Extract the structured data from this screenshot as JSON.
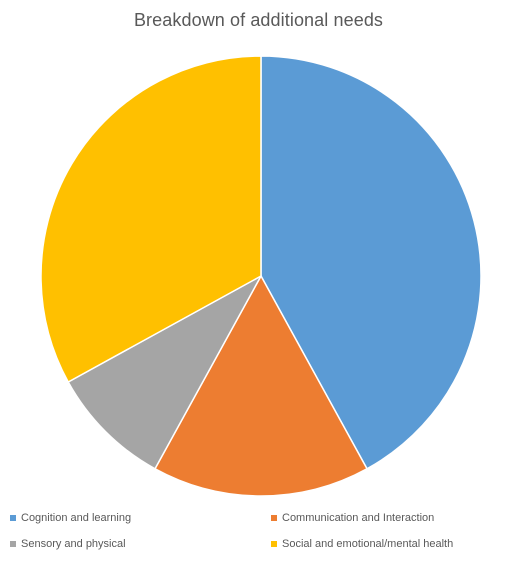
{
  "chart_data": {
    "type": "pie",
    "title": "Breakdown of additional needs",
    "start_angle_deg": 0,
    "direction": "clockwise",
    "slices": [
      {
        "label": "Cognition and learning",
        "value": 42,
        "color": "#5B9BD5"
      },
      {
        "label": "Communication and Interaction",
        "value": 16,
        "color": "#ED7D31"
      },
      {
        "label": "Sensory and physical",
        "value": 9,
        "color": "#A5A5A5"
      },
      {
        "label": "Social and emotional/mental health",
        "value": 33,
        "color": "#FFC000"
      }
    ],
    "legend_position": "bottom"
  }
}
